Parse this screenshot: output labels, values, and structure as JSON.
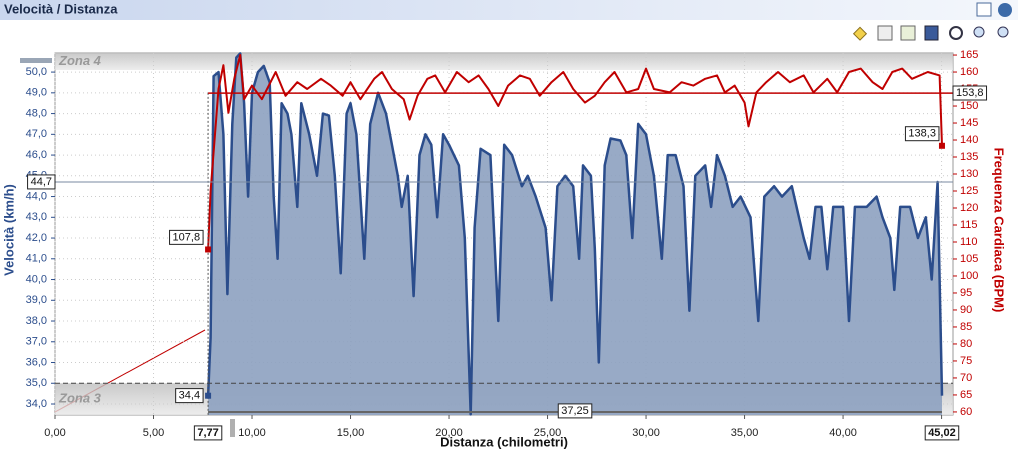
{
  "header": {
    "title": "Velocità / Distanza"
  },
  "chart_data": {
    "type": "line",
    "xlabel": "Distanza (chilometri)",
    "ylabel": "Velocità (km/h)",
    "y2label": "Frequenza Cardiaca (BPM)",
    "grid": true,
    "xlim": [
      0,
      45.58
    ],
    "xticks": [
      {
        "value": 0,
        "label": "0,00"
      },
      {
        "value": 5,
        "label": "5,00"
      },
      {
        "value": 10,
        "label": "10,00"
      },
      {
        "value": 15,
        "label": "15,00"
      },
      {
        "value": 20,
        "label": "20,00"
      },
      {
        "value": 25,
        "label": "25,00"
      },
      {
        "value": 30,
        "label": "30,00"
      },
      {
        "value": 35,
        "label": "35,00"
      },
      {
        "value": 40,
        "label": "40,00"
      },
      {
        "value": 45,
        "label": "45,00"
      }
    ],
    "ylim": [
      33.47,
      50.92
    ],
    "yticks": [
      {
        "value": 34,
        "label": "34,0"
      },
      {
        "value": 35,
        "label": "35,0"
      },
      {
        "value": 36,
        "label": "36,0"
      },
      {
        "value": 37,
        "label": "37,0"
      },
      {
        "value": 38,
        "label": "38,0"
      },
      {
        "value": 39,
        "label": "39,0"
      },
      {
        "value": 40,
        "label": "40,0"
      },
      {
        "value": 41,
        "label": "41,0"
      },
      {
        "value": 42,
        "label": "42,0"
      },
      {
        "value": 43,
        "label": "43,0"
      },
      {
        "value": 44,
        "label": "44,0"
      },
      {
        "value": 45,
        "label": "45,0"
      },
      {
        "value": 46,
        "label": "46,0"
      },
      {
        "value": 47,
        "label": "47,0"
      },
      {
        "value": 48,
        "label": "48,0"
      },
      {
        "value": 49,
        "label": "49,0"
      },
      {
        "value": 50,
        "label": "50,0"
      }
    ],
    "y2lim": [
      59.1,
      165.6
    ],
    "y2ticks": [
      60,
      65,
      70,
      75,
      80,
      85,
      90,
      95,
      100,
      105,
      110,
      115,
      120,
      125,
      130,
      135,
      140,
      145,
      150,
      155,
      160,
      165
    ],
    "series": [
      {
        "color": "#2b4d8c",
        "fill": "#8da1c0",
        "x": [
          7.77,
          7.9,
          8.05,
          8.3,
          8.55,
          8.75,
          9.0,
          9.2,
          9.4,
          9.6,
          9.8,
          10.0,
          10.3,
          10.6,
          10.9,
          11.1,
          11.3,
          11.5,
          11.8,
          12.0,
          12.3,
          12.5,
          12.9,
          13.3,
          13.6,
          13.9,
          14.2,
          14.5,
          14.8,
          15.0,
          15.3,
          15.7,
          16.0,
          16.4,
          16.8,
          17.1,
          17.4,
          17.6,
          17.9,
          18.2,
          18.5,
          18.8,
          19.1,
          19.4,
          19.7,
          20.0,
          20.5,
          20.8,
          21.1,
          21.3,
          21.6,
          22.1,
          22.5,
          22.8,
          23.2,
          23.7,
          24.0,
          24.4,
          24.9,
          25.2,
          25.5,
          25.9,
          26.3,
          26.6,
          26.8,
          27.2,
          27.4,
          27.6,
          27.9,
          28.2,
          28.7,
          29.0,
          29.3,
          29.6,
          30.0,
          30.4,
          30.8,
          31.1,
          31.5,
          31.9,
          32.2,
          32.5,
          33.0,
          33.3,
          33.6,
          34.0,
          34.4,
          34.8,
          35.3,
          35.7,
          36.0,
          36.5,
          36.9,
          37.4,
          38.0,
          38.3,
          38.6,
          38.9,
          39.2,
          39.5,
          40.0,
          40.3,
          40.6,
          41.2,
          41.7,
          42.0,
          42.4,
          42.6,
          42.9,
          43.4,
          43.8,
          44.2,
          44.5,
          44.8,
          45.02
        ],
        "values": [
          34.4,
          37.2,
          49.8,
          50.0,
          47.0,
          39.3,
          47.5,
          50.7,
          50.9,
          48.5,
          44.0,
          49.0,
          50.0,
          50.3,
          49.5,
          44.0,
          41.0,
          48.5,
          48.0,
          47.0,
          43.5,
          48.5,
          47.0,
          45.0,
          48.0,
          47.9,
          45.0,
          40.3,
          48.0,
          48.5,
          47.0,
          41.0,
          47.5,
          49.0,
          48.0,
          46.5,
          45.0,
          43.5,
          45.0,
          39.2,
          46.0,
          47.0,
          46.5,
          43.0,
          47.0,
          46.5,
          45.5,
          42.0,
          33.5,
          42.5,
          46.3,
          46.0,
          38.0,
          46.5,
          46.0,
          44.5,
          45.0,
          44.0,
          42.5,
          39.0,
          44.5,
          45.0,
          44.5,
          41.0,
          45.5,
          45.0,
          41.5,
          36.0,
          45.5,
          46.8,
          46.7,
          46.0,
          42.0,
          47.5,
          47.0,
          45.0,
          41.0,
          46.0,
          46.0,
          44.5,
          38.5,
          45.0,
          45.5,
          43.5,
          46.0,
          45.0,
          43.5,
          44.0,
          43.0,
          38.0,
          44.0,
          44.5,
          44.0,
          44.5,
          42.0,
          41.0,
          43.5,
          43.5,
          40.5,
          43.5,
          43.5,
          38.0,
          43.5,
          43.5,
          44.0,
          43.0,
          42.0,
          39.5,
          43.5,
          43.5,
          42.0,
          43.0,
          40.0,
          44.7,
          34.4
        ]
      },
      {
        "color": "#c00000",
        "axis": "y2",
        "x": [
          7.77,
          7.9,
          8.3,
          8.55,
          8.8,
          9.1,
          9.4,
          9.6,
          10.0,
          10.5,
          11.2,
          11.7,
          12.3,
          12.8,
          13.5,
          14.0,
          14.6,
          15.0,
          15.5,
          16.2,
          16.6,
          17.1,
          17.7,
          18.0,
          18.4,
          18.9,
          19.3,
          19.8,
          20.4,
          21.0,
          21.5,
          22.0,
          22.5,
          23.0,
          23.6,
          24.1,
          24.6,
          25.2,
          25.8,
          26.3,
          26.9,
          27.4,
          27.9,
          28.4,
          29.0,
          29.6,
          30.0,
          30.4,
          31.2,
          31.8,
          32.4,
          33.0,
          33.6,
          34.0,
          34.5,
          35.0,
          35.2,
          35.6,
          36.1,
          36.7,
          37.3,
          38.0,
          38.5,
          39.2,
          39.7,
          40.3,
          40.9,
          41.5,
          42.0,
          42.5,
          43.0,
          43.5,
          44.3,
          44.9,
          45.02
        ],
        "values": [
          107.8,
          125,
          155,
          162,
          148,
          158,
          165,
          152,
          156,
          152,
          160,
          153,
          157,
          155,
          158,
          156,
          153,
          157,
          152,
          158,
          160,
          155,
          152,
          146,
          153,
          158,
          159,
          154,
          160,
          157,
          159,
          155,
          150,
          156,
          159,
          158,
          153,
          157,
          160,
          155,
          151,
          153,
          157,
          160,
          154,
          155,
          161,
          155,
          154,
          157,
          156,
          158,
          159,
          154,
          156,
          151,
          144,
          154,
          157,
          160,
          157,
          159,
          154,
          158,
          154,
          160,
          161,
          157,
          155,
          160,
          161,
          158,
          160,
          159,
          138.3
        ]
      }
    ],
    "range": {
      "start": {
        "value": 7.77,
        "label": "7,77"
      },
      "end": {
        "value": 45.02,
        "label": "45,02"
      },
      "width": {
        "value": 37.25,
        "label": "37,25"
      }
    },
    "reference_lines": [
      {
        "axis": "y",
        "value": 44.7,
        "label": "44,7"
      },
      {
        "axis": "y2",
        "value": 153.8,
        "label": "153,8"
      }
    ],
    "point_labels": [
      {
        "axis": "y",
        "x": 7.77,
        "value": 34.4,
        "label": "34,4"
      },
      {
        "axis": "y2",
        "x": 7.77,
        "value": 107.8,
        "label": "107,8"
      },
      {
        "axis": "y2",
        "x": 45.02,
        "value": 138.3,
        "label": "138,3"
      }
    ],
    "zones": [
      {
        "label": "Zona 4",
        "from": 50.1,
        "to": 50.92
      },
      {
        "label": "Zona 3",
        "from": 33.47,
        "to": 35.0
      }
    ]
  }
}
